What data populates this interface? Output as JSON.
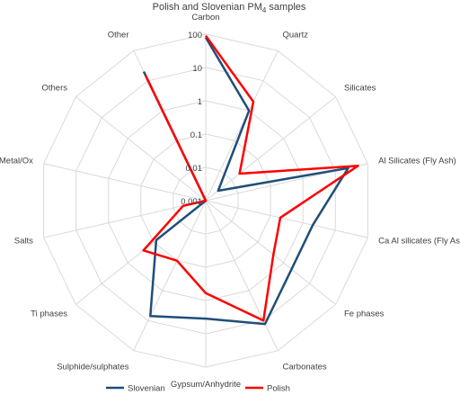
{
  "chart_data": {
    "type": "radar",
    "title": "Polish and Slovenian PM",
    "title_sub": "4",
    "title_tail": " samples",
    "scale": "log",
    "ylim": [
      0.001,
      100
    ],
    "ticks": [
      "100",
      "10",
      "1",
      "0.1",
      "0.01",
      "0.001"
    ],
    "tick_values": [
      100,
      10,
      1,
      0.1,
      0.01,
      0.001
    ],
    "categories": [
      "Carbon",
      "Quartz",
      "Silicates",
      "Al Silicates (Fly Ash)",
      "Ca Al silicates (Fly Ash)",
      "Fe phases",
      "Carbonates",
      "Gypsum/Anhydrite",
      "Sulphide/sulphates",
      "Ti phases",
      "Salts",
      "Metal/Ox",
      "Others",
      "Other"
    ],
    "series": [
      {
        "name": "Slovenian",
        "color": "#1f4e79",
        "values": [
          80,
          1,
          0.003,
          25,
          2,
          2,
          13,
          3.5,
          7,
          0.08,
          0.001,
          0,
          0,
          20
        ]
      },
      {
        "name": "Polish",
        "color": "#ff0000",
        "values": [
          90,
          2,
          0.02,
          50,
          0.2,
          0.4,
          10,
          0.6,
          0.1,
          0.25,
          0.005,
          0,
          0,
          15
        ]
      }
    ],
    "legend": "bottom"
  }
}
